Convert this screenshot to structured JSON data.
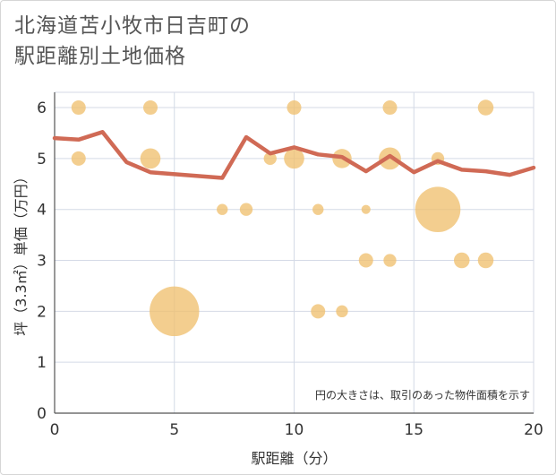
{
  "title_lines": [
    "北海道苫小牧市日吉町の",
    "駅距離別土地価格"
  ],
  "chart_data": {
    "type": "scatter",
    "title": "北海道苫小牧市日吉町の駅距離別土地価格",
    "xlabel": "駅距離（分）",
    "ylabel": "坪（3.3㎡）単価（万円）",
    "xlim": [
      0,
      20
    ],
    "ylim": [
      0,
      6.3
    ],
    "x_ticks": [
      0,
      5,
      10,
      15,
      20
    ],
    "y_ticks": [
      0,
      1,
      2,
      3,
      4,
      5,
      6
    ],
    "grid": true,
    "annotation": "円の大きさは、取引のあった物件面積を示す",
    "colors": {
      "bubble": "#f0c070",
      "line": "#d06a55",
      "grid": "#d4dae6"
    },
    "bubbles": [
      {
        "x": 1,
        "y": 6.0,
        "size": 1
      },
      {
        "x": 4,
        "y": 6.0,
        "size": 1
      },
      {
        "x": 10,
        "y": 6.0,
        "size": 1
      },
      {
        "x": 14,
        "y": 6.0,
        "size": 1
      },
      {
        "x": 18,
        "y": 6.0,
        "size": 1.2
      },
      {
        "x": 1,
        "y": 5.0,
        "size": 1
      },
      {
        "x": 4,
        "y": 5.0,
        "size": 2
      },
      {
        "x": 9,
        "y": 5.0,
        "size": 0.8
      },
      {
        "x": 10,
        "y": 5.0,
        "size": 2
      },
      {
        "x": 12,
        "y": 5.0,
        "size": 1.8
      },
      {
        "x": 14,
        "y": 5.0,
        "size": 2.4
      },
      {
        "x": 16,
        "y": 5.0,
        "size": 0.8
      },
      {
        "x": 7,
        "y": 4.0,
        "size": 0.6
      },
      {
        "x": 8,
        "y": 4.0,
        "size": 0.8
      },
      {
        "x": 11,
        "y": 4.0,
        "size": 0.6
      },
      {
        "x": 13,
        "y": 4.0,
        "size": 0.4
      },
      {
        "x": 16,
        "y": 4.0,
        "size": 10
      },
      {
        "x": 13,
        "y": 3.0,
        "size": 1
      },
      {
        "x": 14,
        "y": 3.0,
        "size": 0.8
      },
      {
        "x": 17,
        "y": 3.0,
        "size": 1.2
      },
      {
        "x": 18,
        "y": 3.0,
        "size": 1.2
      },
      {
        "x": 5,
        "y": 2.0,
        "size": 12
      },
      {
        "x": 11,
        "y": 2.0,
        "size": 1
      },
      {
        "x": 12,
        "y": 2.0,
        "size": 0.7
      }
    ],
    "trend_line": [
      {
        "x": 0,
        "y": 5.4
      },
      {
        "x": 1,
        "y": 5.37
      },
      {
        "x": 2,
        "y": 5.52
      },
      {
        "x": 3,
        "y": 4.93
      },
      {
        "x": 4,
        "y": 4.73
      },
      {
        "x": 7,
        "y": 4.62
      },
      {
        "x": 8,
        "y": 5.42
      },
      {
        "x": 9,
        "y": 5.1
      },
      {
        "x": 10,
        "y": 5.22
      },
      {
        "x": 11,
        "y": 5.08
      },
      {
        "x": 12,
        "y": 5.03
      },
      {
        "x": 13,
        "y": 4.75
      },
      {
        "x": 14,
        "y": 5.05
      },
      {
        "x": 15,
        "y": 4.73
      },
      {
        "x": 16,
        "y": 4.95
      },
      {
        "x": 17,
        "y": 4.78
      },
      {
        "x": 18,
        "y": 4.75
      },
      {
        "x": 19,
        "y": 4.68
      },
      {
        "x": 20,
        "y": 4.82
      }
    ]
  }
}
